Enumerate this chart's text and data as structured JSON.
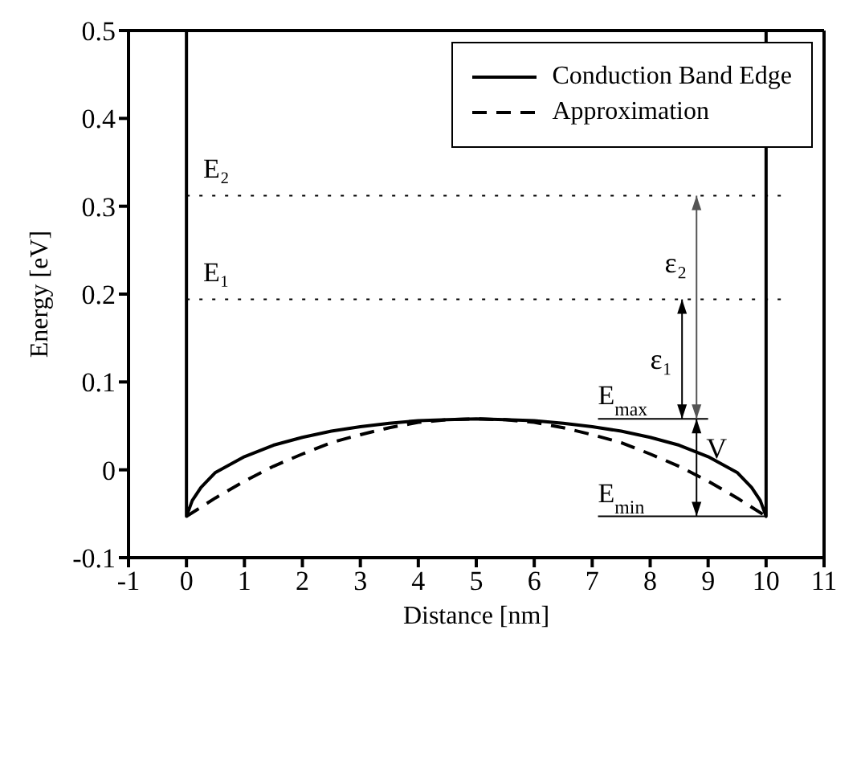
{
  "chart_data": {
    "type": "line",
    "xlabel": "Distance [nm]",
    "ylabel": "Energy [eV]",
    "xlim": [
      -1,
      11
    ],
    "xticks": [
      -1,
      0,
      1,
      2,
      3,
      4,
      5,
      6,
      7,
      8,
      9,
      10,
      11
    ],
    "ylim": [
      -0.1,
      0.5
    ],
    "yticks": [
      -0.1,
      0,
      0.1,
      0.2,
      0.3,
      0.4,
      0.5
    ],
    "grid": false,
    "legend": "top right",
    "marker": "none",
    "series": [
      {
        "name": "Conduction Band Edge",
        "color": "#000000",
        "line_style": "solid",
        "x": [
          0,
          0,
          0.1,
          0.25,
          0.5,
          1,
          1.5,
          2,
          2.5,
          3,
          3.5,
          4,
          4.5,
          5,
          5.5,
          6,
          6.5,
          7,
          7.5,
          8,
          8.5,
          9,
          9.5,
          9.75,
          9.9,
          10,
          10
        ],
        "values": [
          0.5,
          -0.053,
          -0.035,
          -0.02,
          -0.003,
          0.015,
          0.028,
          0.037,
          0.044,
          0.049,
          0.053,
          0.056,
          0.057,
          0.058,
          0.057,
          0.056,
          0.053,
          0.049,
          0.044,
          0.037,
          0.028,
          0.015,
          -0.003,
          -0.02,
          -0.035,
          -0.053,
          0.5
        ]
      },
      {
        "name": "Approximation",
        "color": "#000000",
        "line_style": "dashed",
        "x": [
          0,
          0.5,
          1,
          1.5,
          2,
          2.5,
          3,
          3.5,
          4,
          4.5,
          5,
          5.5,
          6,
          6.5,
          7,
          7.5,
          8,
          8.5,
          9,
          9.5,
          10
        ],
        "values": [
          -0.053,
          -0.032,
          -0.013,
          0.004,
          0.018,
          0.031,
          0.04,
          0.048,
          0.054,
          0.057,
          0.058,
          0.057,
          0.054,
          0.048,
          0.04,
          0.031,
          0.018,
          0.004,
          -0.013,
          -0.032,
          -0.053
        ]
      },
      {
        "color": "#000000",
        "line_style": "dotted",
        "x": [
          0,
          10.3
        ],
        "values": [
          0.312,
          0.312
        ]
      },
      {
        "color": "#000000",
        "line_style": "dotted",
        "x": [
          0,
          10.3
        ],
        "values": [
          0.194,
          0.194
        ]
      },
      {
        "color": "#000000",
        "line_style": "solid",
        "x": [
          7.1,
          9.0
        ],
        "values": [
          0.058,
          0.058
        ]
      },
      {
        "color": "#000000",
        "line_style": "solid",
        "x": [
          7.1,
          10
        ],
        "values": [
          -0.053,
          -0.053
        ]
      }
    ],
    "annotations": [
      {
        "text": "E₂",
        "x": 0.15,
        "y": 0.322
      },
      {
        "text": "E₁",
        "x": 0.15,
        "y": 0.204
      },
      {
        "text": "ε₂",
        "x": 8.8,
        "y": 0.312
      },
      {
        "text": "ε₁",
        "x": 8.55,
        "y": 0.194
      },
      {
        "text": "V",
        "x": 8.8,
        "y": 0.058
      },
      "E$_{max}$",
      "E$_{min}$"
    ]
  }
}
